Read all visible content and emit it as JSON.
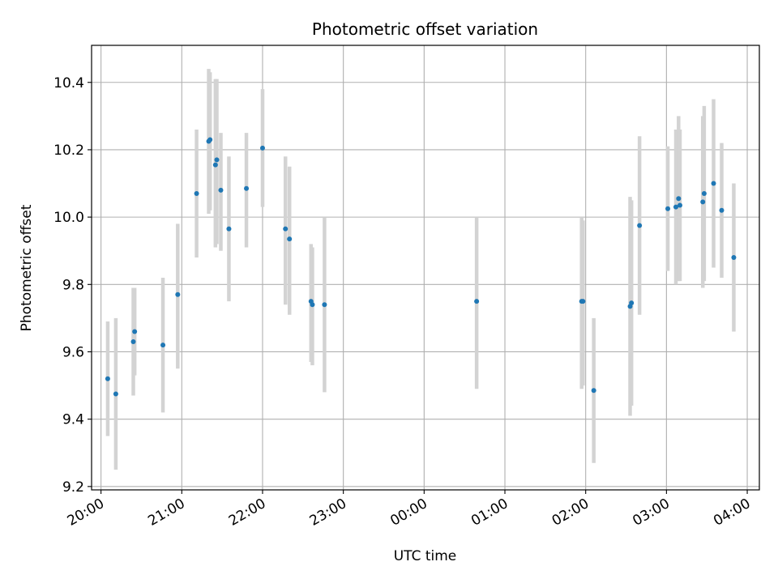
{
  "chart_data": {
    "type": "scatter",
    "title": "Photometric offset variation",
    "xlabel": "UTC time",
    "ylabel": "Photometric offset",
    "x_tick_labels": [
      "20:00",
      "21:00",
      "22:00",
      "23:00",
      "00:00",
      "01:00",
      "02:00",
      "03:00",
      "04:00"
    ],
    "y_tick_labels": [
      "9.2",
      "9.4",
      "9.6",
      "9.8",
      "10.0",
      "10.2",
      "10.4"
    ],
    "x_axis": "UTC time of night, 20:00 to 04:00 (next day)",
    "xlim": [
      "19:53",
      "04:09"
    ],
    "ylim": [
      9.19,
      10.51
    ],
    "grid": true,
    "marker_color": "#1f77b4",
    "errorbar_color": "#d3d3d3",
    "points": [
      {
        "x": "20:05",
        "y": 9.52,
        "ylow": 9.35,
        "yhigh": 9.69
      },
      {
        "x": "20:11",
        "y": 9.475,
        "ylow": 9.25,
        "yhigh": 9.7
      },
      {
        "x": "20:24",
        "y": 9.63,
        "ylow": 9.47,
        "yhigh": 9.79
      },
      {
        "x": "20:25",
        "y": 9.66,
        "ylow": 9.53,
        "yhigh": 9.79
      },
      {
        "x": "20:46",
        "y": 9.62,
        "ylow": 9.42,
        "yhigh": 9.82
      },
      {
        "x": "20:57",
        "y": 9.77,
        "ylow": 9.55,
        "yhigh": 9.98
      },
      {
        "x": "21:11",
        "y": 10.07,
        "ylow": 9.88,
        "yhigh": 10.26
      },
      {
        "x": "21:20",
        "y": 10.225,
        "ylow": 10.01,
        "yhigh": 10.44
      },
      {
        "x": "21:21",
        "y": 10.23,
        "ylow": 10.02,
        "yhigh": 10.43
      },
      {
        "x": "21:25",
        "y": 10.155,
        "ylow": 9.91,
        "yhigh": 10.41
      },
      {
        "x": "21:26",
        "y": 10.17,
        "ylow": 9.92,
        "yhigh": 10.41
      },
      {
        "x": "21:29",
        "y": 10.08,
        "ylow": 9.9,
        "yhigh": 10.25
      },
      {
        "x": "21:35",
        "y": 9.965,
        "ylow": 9.75,
        "yhigh": 10.18
      },
      {
        "x": "21:48",
        "y": 10.085,
        "ylow": 9.91,
        "yhigh": 10.25
      },
      {
        "x": "22:00",
        "y": 10.205,
        "ylow": 10.03,
        "yhigh": 10.38
      },
      {
        "x": "22:17",
        "y": 9.965,
        "ylow": 9.74,
        "yhigh": 10.18
      },
      {
        "x": "22:20",
        "y": 9.935,
        "ylow": 9.71,
        "yhigh": 10.15
      },
      {
        "x": "22:36",
        "y": 9.75,
        "ylow": 9.57,
        "yhigh": 9.92
      },
      {
        "x": "22:37",
        "y": 9.74,
        "ylow": 9.56,
        "yhigh": 9.91
      },
      {
        "x": "22:46",
        "y": 9.74,
        "ylow": 9.48,
        "yhigh": 10.0
      },
      {
        "x": "00:39",
        "y": 9.75,
        "ylow": 9.49,
        "yhigh": 10.0
      },
      {
        "x": "01:57",
        "y": 9.75,
        "ylow": 9.49,
        "yhigh": 10.0
      },
      {
        "x": "01:58",
        "y": 9.75,
        "ylow": 9.5,
        "yhigh": 9.99
      },
      {
        "x": "02:06",
        "y": 9.485,
        "ylow": 9.27,
        "yhigh": 9.7
      },
      {
        "x": "02:33",
        "y": 9.735,
        "ylow": 9.41,
        "yhigh": 10.06
      },
      {
        "x": "02:34",
        "y": 9.745,
        "ylow": 9.44,
        "yhigh": 10.05
      },
      {
        "x": "02:40",
        "y": 9.975,
        "ylow": 9.71,
        "yhigh": 10.24
      },
      {
        "x": "03:01",
        "y": 10.025,
        "ylow": 9.84,
        "yhigh": 10.21
      },
      {
        "x": "03:07",
        "y": 10.03,
        "ylow": 9.8,
        "yhigh": 10.26
      },
      {
        "x": "03:09",
        "y": 10.055,
        "ylow": 9.81,
        "yhigh": 10.3
      },
      {
        "x": "03:10",
        "y": 10.035,
        "ylow": 9.81,
        "yhigh": 10.26
      },
      {
        "x": "03:27",
        "y": 10.045,
        "ylow": 9.79,
        "yhigh": 10.3
      },
      {
        "x": "03:28",
        "y": 10.07,
        "ylow": 9.81,
        "yhigh": 10.33
      },
      {
        "x": "03:35",
        "y": 10.1,
        "ylow": 9.85,
        "yhigh": 10.35
      },
      {
        "x": "03:41",
        "y": 10.02,
        "ylow": 9.82,
        "yhigh": 10.22
      },
      {
        "x": "03:50",
        "y": 9.88,
        "ylow": 9.66,
        "yhigh": 10.1
      }
    ]
  }
}
